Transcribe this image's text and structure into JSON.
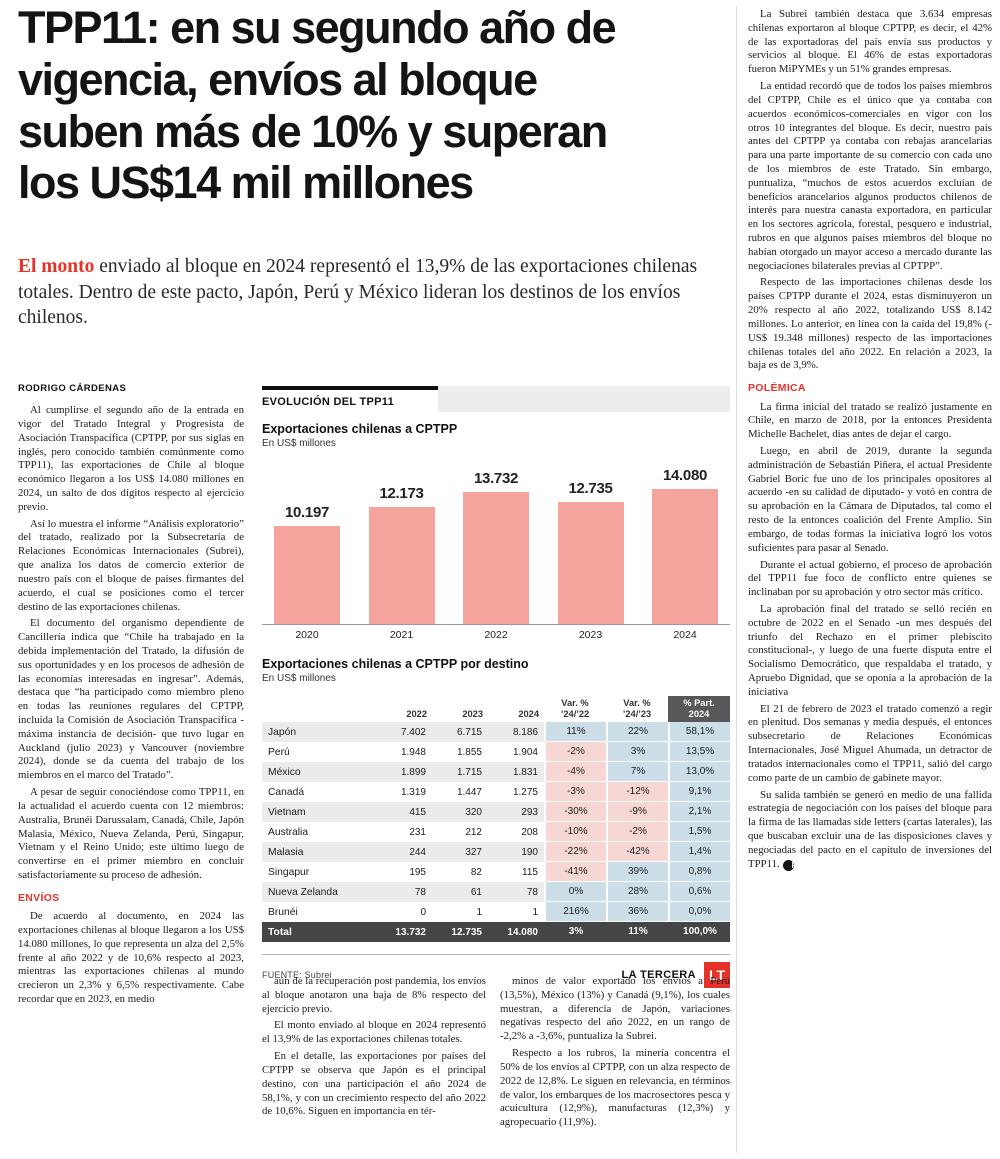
{
  "theme": {
    "accent_red": "#e6332a",
    "bar_color": "#f4a49c",
    "positive_cell_blue": "#ccdfe9",
    "negative_cell_pink": "#f6d7d4",
    "zebra_gray": "#ebebeb",
    "total_row_bg": "#454547"
  },
  "article": {
    "headline": "TPP11: en su segundo año de\nvigencia, envíos al bloque\nsuben más de 10% y superan\nlos US$14 mil millones",
    "lede": {
      "highlight": "El monto",
      "rest": " enviado al bloque en 2024 representó el 13,9% de las exportaciones chilenas totales. Dentro de este pacto, Japón, Perú y México lideran los destinos de los envíos chilenos."
    },
    "byline": "RODRIGO CÁRDENAS",
    "col_left": {
      "paras": [
        "Al cumplirse el segundo año de la entrada en vigor del Tratado Integral y Progresista de Asociación Transpacífica (CPTPP, por sus siglas en inglés, pero conocido también comúnmente como TPP11), las exportaciones de Chile al bloque económico llegaron a los US$ 14.080 millones en 2024, un salto de dos dígitos respecto al ejercicio previo.",
        "Así lo muestra el informe “Análisis exploratorio” del tratado, realizado por la Subsecretaría de Relaciones Económicas Internacionales (Subrei), que analiza los datos de comercio exterior de nuestro país con el bloque de países firmantes del acuerdo, el cual se posiciones como el tercer destino de las exportaciones chilenas.",
        "El documento del organismo dependiente de Cancillería indica que “Chile ha trabajado en la debida implementación del Tratado, la difusión de sus oportunidades y en los procesos de adhesión de las economías interesadas en ingresar”. Además, destaca que “ha participado como miembro pleno en todas las reuniones regulares del CPTPP, incluida la Comisión de Asociación Transpacífica -máxima instancia de decisión- que tuvo lugar en Auckland (julio 2023) y Vancouver (noviembre 2024), donde se da cuenta del trabajo de los miembros en el marco del Tratado”.",
        "A pesar de seguir conociéndose como TPP11, en la actualidad el acuerdo cuenta con 12 miembros: Australia, Brunéi Darussalam, Canadá, Chile, Japón Malasia, México, Nueva Zelanda, Perú, Singapur, Vietnam y el Reino Unido; este último luego de convertirse en el primer miembro en concluir satisfactoriamente su proceso de adhesión."
      ],
      "heading": "ENVÍOS",
      "paras_after": [
        "De acuerdo al documento, en 2024 las exportaciones chilenas al bloque llegaron a los US$ 14.080 millones, lo que representa un alza del 2,5% frente al año 2022 y de 10,6% respecto al 2023, mientras las exportaciones chilenas al mundo crecieron un 2,3% y 6,5% respectivamente. Cabe recordar que en 2023, en medio"
      ]
    },
    "col_mid_a": {
      "paras": [
        "aún de la recuperación post pandemia, los envíos al bloque anotaron una baja de 8% respecto del ejercicio previo.",
        "El monto enviado al bloque en 2024 representó el 13,9% de las exportaciones chilenas totales.",
        "En el detalle, las exportaciones por países del CPTPP se observa que Japón es el principal destino, con una participación el año 2024 de 58,1%, y con un crecimiento respecto del año 2022 de 10,6%. Siguen en importancia en tér-"
      ]
    },
    "col_mid_b": {
      "paras": [
        "minos de valor exportado los envíos a Perú (13,5%), México (13%) y Canadá (9,1%), los cuales muestran, a diferencia de Japón, variaciones negativas respecto del año 2022, en un rango de -2,2% a -3,6%, puntualiza la Subrei.",
        "Respecto a los rubros, la minería concentra el 50% de los envíos al CPTPP, con un alza respecto de 2022 de 12,8%. Le siguen en relevancia, en términos de valor, los embarques de los macrosectores pesca y acuicultura (12,9%), manufacturas (12,3%) y agropecuario (11,9%)."
      ]
    },
    "col_right": {
      "paras_top": [
        "La Subrei también destaca que 3.634 empresas chilenas exportaron al bloque CPTPP, es decir, el 42% de las exportadoras del país envía sus productos y servicios al bloque. El 46% de estas exportadoras fueron MiPYMEs y un 51% grandes empresas.",
        "La entidad recordó que de todos los países miembros del CPTPP, Chile es el único que ya contaba con acuerdos económicos-comerciales en vigor con los otros 10 integrantes del bloque. Es decir, nuestro país antes del CPTPP ya contaba con rebajas arancelarias para una parte importante de su comercio con cada uno de los miembros de este Tratado. Sin embargo, puntualiza, “muchos de estos acuerdos excluían de beneficios arancelarios algunos productos chilenos de interés para nuestra canasta exportadora, en particular en los sectores agrícola, forestal, pesquero e industrial, rubros en que algunos países miembros del bloque no habían otorgado un mayor acceso a mercado durante las negociaciones bilaterales previas al CPTPP”.",
        "Respecto de las importaciones chilenas desde los países CPTPP durante el 2024, estas disminuyeron un 20% respecto al año 2022, totalizando US$ 8.142 millones. Lo anterior, en línea con la caída del 19,8% (-US$ 19.348 millones) respecto de las importaciones chilenas totales del año 2022. En relación a 2023, la baja es de 3,9%."
      ],
      "heading": "POLÉMICA",
      "paras_bottom": [
        "La firma inicial del tratado se realizó justamente en Chile, en marzo de 2018, por la entonces Presidenta Michelle Bachelet, días antes de dejar el cargo.",
        "Luego, en abril de 2019, durante la segunda administración de Sebastián Piñera, el actual Presidente Gabriel Boric fue uno de los principales opositores al acuerdo -en su calidad de diputado- y votó en contra de su aprobación en la Cámara de Diputados, tal como el resto de la entonces coalición del Frente Amplio. Sin embargo, de todas formas la iniciativa logró los votos suficientes para pasar al Senado.",
        "Durante el actual gobierno, el proceso de aprobación del TPP11 fue foco de conflicto entre quienes se inclinaban por su aprobación y otro sector más crítico.",
        "La aprobación final del tratado se selló recién en octubre de 2022 en el Senado -un mes después del triunfo del Rechazo en el primer plebiscito constitucional-, y luego de una fuerte disputa entre el Socialismo Democrático, que respaldaba el tratado, y Apruebo Dignidad, que se oponía a la aprobación de la iniciativa",
        "El 21 de febrero de 2023 el tratado comenzó a regir en plenitud. Dos semanas y media después, el entonces subsecretario de Relaciones Económicas Internacionales, José Miguel Ahumada, un detractor de tratados internacionales como el TPP11, salió del cargo como parte de un cambio de gabinete mayor.",
        "Su salida también se generó en medio de una fallida estrategia de negociación con los países del bloque para la firma de las llamadas side letters (cartas laterales), las que buscaban excluir una de las disposiciones claves y negociadas del pacto en el capítulo de inversiones del TPP11."
      ],
      "end_mark": "P"
    }
  },
  "chart_data": {
    "type": "bar",
    "kicker": "EVOLUCIÓN DEL TPP11",
    "title": "Exportaciones chilenas a CPTPP",
    "subtitle": "En US$ millones",
    "categories": [
      "2020",
      "2021",
      "2022",
      "2023",
      "2024"
    ],
    "values": [
      10197,
      12173,
      13732,
      12735,
      14080
    ],
    "value_labels": [
      "10.197",
      "12.173",
      "13.732",
      "12.735",
      "14.080"
    ],
    "ylim": [
      0,
      14080
    ],
    "bar_color": "#f4a49c",
    "grid": false,
    "legend": "none"
  },
  "table": {
    "title": "Exportaciones chilenas a CPTPP por destino",
    "subtitle": "En US$ millones",
    "headers": [
      "",
      "2022",
      "2023",
      "2024",
      "Var. %\n’24/’22",
      "Var. %\n’24/’23",
      "% Part.\n2024"
    ],
    "rows": [
      {
        "country": "Japón",
        "values": [
          "7.402",
          "6.715",
          "8.186",
          "11%",
          "22%",
          "58,1%"
        ]
      },
      {
        "country": "Perú",
        "values": [
          "1.948",
          "1.855",
          "1.904",
          "-2%",
          "3%",
          "13,5%"
        ]
      },
      {
        "country": "México",
        "values": [
          "1.899",
          "1.715",
          "1.831",
          "-4%",
          "7%",
          "13,0%"
        ]
      },
      {
        "country": "Canadá",
        "values": [
          "1.319",
          "1.447",
          "1.275",
          "-3%",
          "-12%",
          "9,1%"
        ]
      },
      {
        "country": "Vietnam",
        "values": [
          "415",
          "320",
          "293",
          "-30%",
          "-9%",
          "2,1%"
        ]
      },
      {
        "country": "Australia",
        "values": [
          "231",
          "212",
          "208",
          "-10%",
          "-2%",
          "1,5%"
        ]
      },
      {
        "country": "Malasia",
        "values": [
          "244",
          "327",
          "190",
          "-22%",
          "-42%",
          "1,4%"
        ]
      },
      {
        "country": "Singapur",
        "values": [
          "195",
          "82",
          "115",
          "-41%",
          "39%",
          "0,8%"
        ]
      },
      {
        "country": "Nueva Zelanda",
        "values": [
          "78",
          "61",
          "78",
          "0%",
          "28%",
          "0,6%"
        ]
      },
      {
        "country": "Brunéi",
        "values": [
          "0",
          "1",
          "1",
          "216%",
          "36%",
          "0,0%"
        ]
      }
    ],
    "total": {
      "country": "Total",
      "values": [
        "13.732",
        "12.735",
        "14.080",
        "3%",
        "11%",
        "100,0%"
      ]
    },
    "source": "FUENTE: Subrei"
  },
  "footer_brand": {
    "name": "LA TERCERA",
    "logo": "LT"
  }
}
